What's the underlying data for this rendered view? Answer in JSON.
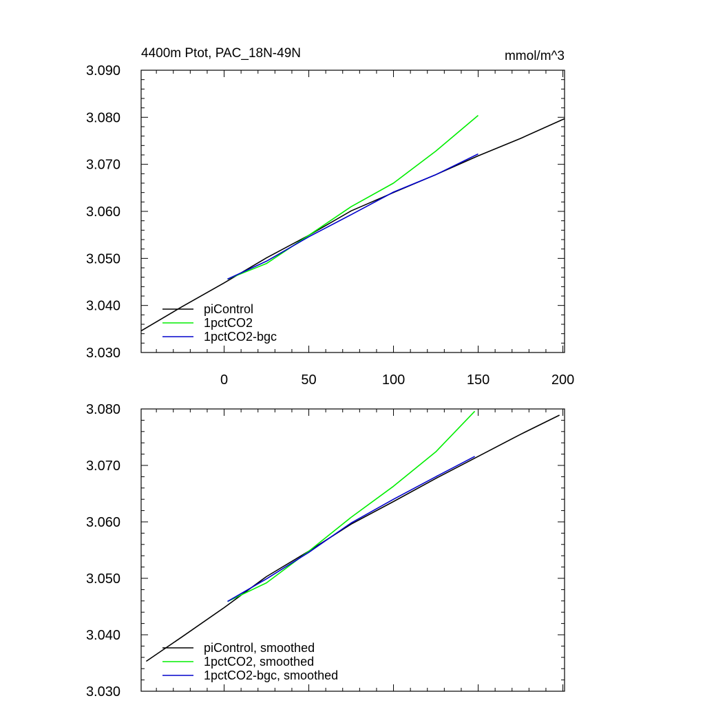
{
  "chart_data": [
    {
      "type": "line",
      "title": "4400m Ptot, PAC_18N-49N",
      "units": "mmol/m^3",
      "xlim": [
        -49,
        201
      ],
      "ylim": [
        3.03,
        3.09
      ],
      "x_ticks": [
        0,
        50,
        100,
        150,
        200
      ],
      "x_tick_labels": [
        "0",
        "50",
        "100",
        "150",
        "200"
      ],
      "y_ticks": [
        3.03,
        3.04,
        3.05,
        3.06,
        3.07,
        3.08,
        3.09
      ],
      "y_tick_labels": [
        "3.030",
        "3.040",
        "3.050",
        "3.060",
        "3.070",
        "3.080",
        "3.090"
      ],
      "legend_position": "bottom-left",
      "series": [
        {
          "name": "piControl",
          "color": "#000000",
          "x": [
            -49,
            -25,
            0,
            25,
            50,
            75,
            100,
            125,
            150,
            175,
            201
          ],
          "y": [
            3.0346,
            3.0397,
            3.0448,
            3.0501,
            3.0549,
            3.0601,
            3.064,
            3.0678,
            3.0718,
            3.0755,
            3.0797
          ]
        },
        {
          "name": "1pctCO2",
          "color": "#00ee00",
          "x": [
            2,
            25,
            50,
            75,
            100,
            125,
            150
          ],
          "y": [
            3.0456,
            3.0489,
            3.0549,
            3.061,
            3.066,
            3.0728,
            3.0804
          ]
        },
        {
          "name": "1pctCO2-bgc",
          "color": "#0000cc",
          "x": [
            2,
            25,
            50,
            75,
            100,
            125,
            150
          ],
          "y": [
            3.0456,
            3.0494,
            3.0546,
            3.0593,
            3.0641,
            3.0678,
            3.0722
          ]
        }
      ]
    },
    {
      "type": "line",
      "xlim": [
        -49,
        201
      ],
      "ylim": [
        3.03,
        3.08
      ],
      "x_ticks": [
        0,
        50,
        100,
        150,
        200
      ],
      "y_ticks": [
        3.03,
        3.04,
        3.05,
        3.06,
        3.07,
        3.08
      ],
      "y_tick_labels": [
        "3.030",
        "3.040",
        "3.050",
        "3.060",
        "3.070",
        "3.080"
      ],
      "legend_position": "bottom-left",
      "series": [
        {
          "name": "piControl, smoothed",
          "color": "#000000",
          "x": [
            -46,
            -25,
            0,
            25,
            50,
            75,
            100,
            125,
            150,
            175,
            198
          ],
          "y": [
            3.0353,
            3.0396,
            3.0448,
            3.0503,
            3.0548,
            3.0596,
            3.0636,
            3.0677,
            3.0716,
            3.0755,
            3.0789
          ]
        },
        {
          "name": "1pctCO2, smoothed",
          "color": "#00ee00",
          "x": [
            2,
            25,
            50,
            75,
            100,
            125,
            148
          ],
          "y": [
            3.0459,
            3.0492,
            3.0548,
            3.0608,
            3.0663,
            3.0724,
            3.0796
          ]
        },
        {
          "name": "1pctCO2-bgc, smoothed",
          "color": "#0000cc",
          "x": [
            2,
            25,
            50,
            75,
            100,
            125,
            148
          ],
          "y": [
            3.0459,
            3.0499,
            3.0546,
            3.0598,
            3.064,
            3.068,
            3.0716
          ]
        }
      ]
    }
  ]
}
